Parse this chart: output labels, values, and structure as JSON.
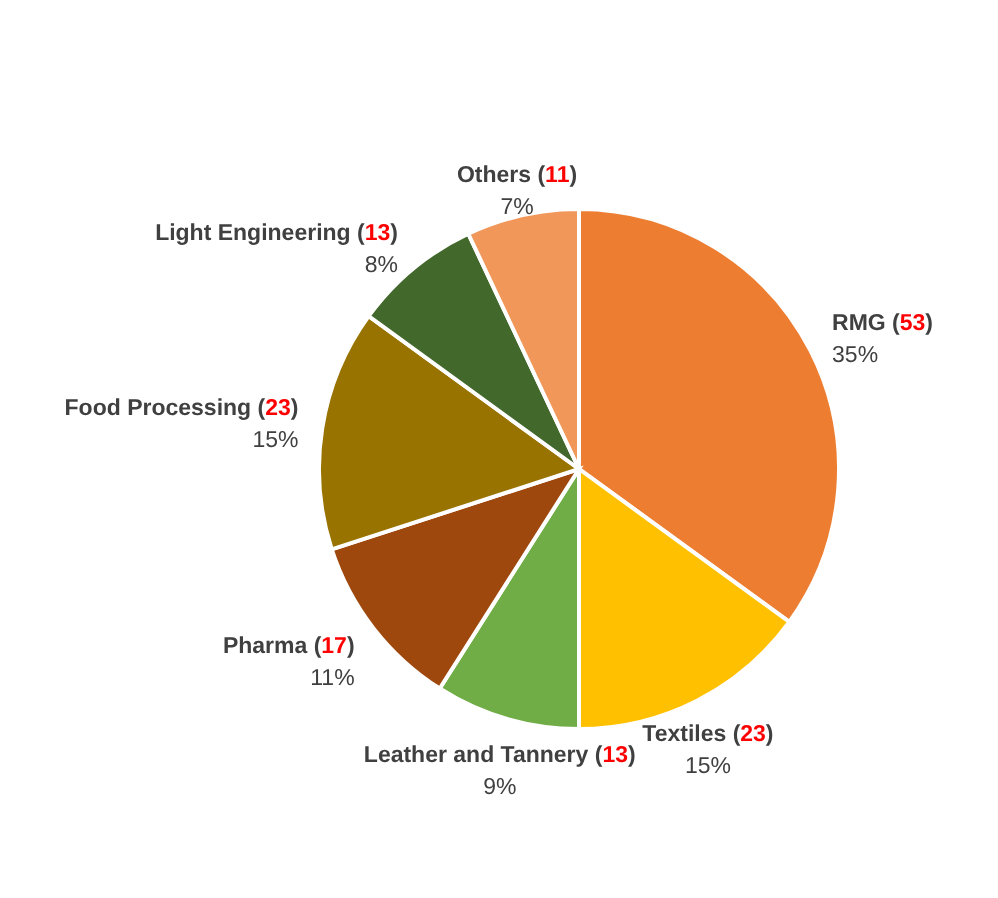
{
  "chart_data": {
    "type": "pie",
    "categories": [
      "RMG (53)",
      "Textiles (23)",
      "Leather and Tannery (13)",
      "Pharma (17)",
      "Food Processing (23)",
      "Light Engineering (13)",
      "Others (11)"
    ],
    "values": [
      35,
      15,
      9,
      11,
      15,
      8,
      7
    ],
    "value_labels": [
      "35%",
      "15%",
      "9%",
      "11%",
      "15%",
      "8%",
      "7%"
    ],
    "colors": [
      "#ed7d31",
      "#ffc000",
      "#70ad47",
      "#9e480e",
      "#997300",
      "#43682b",
      "#f1975a"
    ]
  }
}
